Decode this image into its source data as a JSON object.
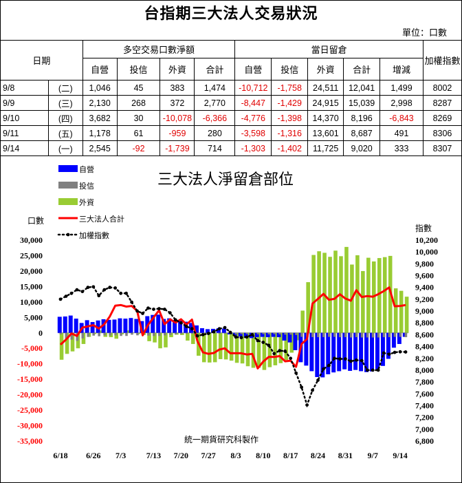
{
  "header": {
    "title": "台指期三大法人交易狀況",
    "unit": "單位：口數"
  },
  "table": {
    "date_header": "日期",
    "group_net": "多空交易口數淨額",
    "group_oi": "當日留倉",
    "index_header": "加權指數",
    "sub_headers": [
      "自營",
      "投信",
      "外資",
      "合計",
      "自營",
      "投信",
      "外資",
      "合計",
      "增減"
    ],
    "rows": [
      {
        "date": "9/8",
        "wd": "(二)",
        "cells": [
          "1,046",
          "45",
          "383",
          "1,474",
          "-10,712",
          "-1,758",
          "24,511",
          "12,041",
          "1,499",
          "8002"
        ]
      },
      {
        "date": "9/9",
        "wd": "(三)",
        "cells": [
          "2,130",
          "268",
          "372",
          "2,770",
          "-8,447",
          "-1,429",
          "24,915",
          "15,039",
          "2,998",
          "8287"
        ]
      },
      {
        "date": "9/10",
        "wd": "(四)",
        "cells": [
          "3,682",
          "30",
          "-10,078",
          "-6,366",
          "-4,776",
          "-1,398",
          "14,370",
          "8,196",
          "-6,843",
          "8269"
        ]
      },
      {
        "date": "9/11",
        "wd": "(五)",
        "cells": [
          "1,178",
          "61",
          "-959",
          "280",
          "-3,598",
          "-1,316",
          "13,601",
          "8,687",
          "491",
          "8306"
        ]
      },
      {
        "date": "9/14",
        "wd": "(一)",
        "cells": [
          "2,545",
          "-92",
          "-1,739",
          "714",
          "-1,303",
          "-1,402",
          "11,725",
          "9,020",
          "333",
          "8307"
        ]
      }
    ]
  },
  "chart_data": {
    "type": "bar",
    "title": "三大法人淨留倉部位",
    "ylabel": "口數",
    "y2label": "指數",
    "ylim": [
      -35000,
      30000
    ],
    "y_ticks": [
      "30,000",
      "25,000",
      "20,000",
      "15,000",
      "10,000",
      "5,000",
      "0",
      "-5,000",
      "-10,000",
      "-15,000",
      "-20,000",
      "-25,000",
      "-30,000",
      "-35,000"
    ],
    "y2lim": [
      6800,
      10200
    ],
    "y2_ticks": [
      "10,200",
      "10,000",
      "9,800",
      "9,600",
      "9,400",
      "9,200",
      "9,000",
      "8,800",
      "8,600",
      "8,400",
      "8,200",
      "8,000",
      "7,800",
      "7,600",
      "7,400",
      "7,200",
      "7,000",
      "6,800"
    ],
    "x_ticks": [
      "6/18",
      "6/26",
      "7/3",
      "7/13",
      "7/20",
      "7/27",
      "8/3",
      "8/10",
      "8/17",
      "8/24",
      "8/31",
      "9/7",
      "9/14"
    ],
    "x_tick_index": [
      0,
      6,
      11,
      17,
      22,
      27,
      32,
      37,
      42,
      47,
      52,
      57,
      62
    ],
    "watermark": "統一期貨研究科製作",
    "legend_position": "top-left",
    "series": [
      {
        "name": "自營",
        "kind": "bar",
        "color": "#0000ff",
        "values": [
          5200,
          5300,
          5600,
          4600,
          3200,
          4100,
          3500,
          4000,
          4400,
          4200,
          4300,
          4700,
          4600,
          4800,
          4500,
          3800,
          5400,
          5800,
          5900,
          4500,
          4700,
          4200,
          3900,
          3600,
          3200,
          2400,
          1500,
          1200,
          1300,
          1500,
          1400,
          -500,
          -800,
          -1200,
          -1500,
          -1700,
          -1400,
          -1300,
          -1400,
          -1300,
          -1400,
          -2500,
          -3100,
          -5600,
          -9500,
          -10600,
          -12400,
          -14300,
          -14400,
          -13400,
          -12800,
          -12400,
          -11800,
          -12300,
          -12000,
          -12400,
          -12700,
          -12500,
          -11800,
          -10700,
          -8400,
          -4800,
          -3600,
          -1300
        ]
      },
      {
        "name": "投信",
        "kind": "bar",
        "color": "#808080",
        "values": [
          -500,
          -2200,
          -2200,
          -2600,
          -1800,
          -1300,
          -900,
          -1100,
          -800,
          -900,
          -800,
          -1000,
          -1000,
          -600,
          -800,
          -800,
          -900,
          -1000,
          -1000,
          -800,
          -700,
          -500,
          -400,
          -300,
          -300,
          -200,
          -200,
          -100,
          -200,
          -300,
          -300,
          -400,
          -500,
          -400,
          -400,
          -500,
          -500,
          -400,
          -500,
          -400,
          -500,
          -600,
          -600,
          -700,
          -1300,
          -1500,
          -1400,
          -1400,
          -1400,
          -1300,
          -1300,
          -1400,
          -1400,
          -1500,
          -1400,
          -1500,
          -1500,
          -1500,
          -1500,
          -1400,
          -1400,
          -1300,
          -1300,
          -1400
        ]
      },
      {
        "name": "外資",
        "kind": "bar",
        "color": "#99cc33",
        "values": [
          -8700,
          -6800,
          -6000,
          -5000,
          -3600,
          -1300,
          -400,
          800,
          -1300,
          -1400,
          -1900,
          -500,
          800,
          100,
          -400,
          -700,
          -2700,
          -3100,
          -5000,
          -4700,
          -1400,
          -600,
          -700,
          -2500,
          -3600,
          -7400,
          -9500,
          -9600,
          -9500,
          -8500,
          -8600,
          -9000,
          -9700,
          -9900,
          -10800,
          -11300,
          -11300,
          -12000,
          -11100,
          -10500,
          -9800,
          -8800,
          -6400,
          -2400,
          7200,
          16400,
          25200,
          26400,
          25900,
          24600,
          26600,
          24800,
          27800,
          22100,
          25100,
          20000,
          24300,
          23100,
          24200,
          24500,
          24900,
          14400,
          13600,
          11700
        ]
      },
      {
        "name": "三大法人合計",
        "kind": "line",
        "color": "#ff0000",
        "values": [
          -3800,
          -2200,
          -200,
          -1000,
          1700,
          2100,
          2500,
          1400,
          2800,
          5300,
          8800,
          9000,
          8500,
          8700,
          7100,
          -800,
          2600,
          5000,
          7300,
          2800,
          4400,
          3300,
          4400,
          2700,
          4300,
          -2700,
          -6300,
          -6800,
          -6500,
          -5400,
          -5000,
          -6600,
          -6600,
          -6600,
          -7000,
          -6800,
          -11500,
          -9300,
          -7800,
          -7800,
          -7500,
          -9200,
          -9000,
          -11000,
          -3600,
          -2000,
          9500,
          11000,
          12600,
          10700,
          11000,
          12500,
          11100,
          10400,
          13800,
          11600,
          11900,
          11700,
          12500,
          13500,
          14700,
          8600,
          8700,
          9000
        ]
      },
      {
        "name": "加權指數",
        "kind": "line",
        "axis": "right",
        "color": "#000000",
        "values": [
          9200,
          9250,
          9300,
          9360,
          9330,
          9400,
          9410,
          9260,
          9360,
          9400,
          9390,
          9300,
          9300,
          9150,
          9000,
          8960,
          9050,
          9030,
          9040,
          9030,
          8970,
          8850,
          8800,
          8740,
          8700,
          8580,
          8600,
          8620,
          8650,
          8700,
          8720,
          8640,
          8560,
          8550,
          8560,
          8600,
          8500,
          8470,
          8420,
          8280,
          8330,
          8320,
          8200,
          7950,
          7710,
          7410,
          7660,
          7830,
          8020,
          8080,
          8200,
          8190,
          8190,
          8150,
          8170,
          8160,
          8000,
          8000,
          8000,
          8290,
          8270,
          8300,
          8310,
          8307
        ]
      }
    ]
  }
}
